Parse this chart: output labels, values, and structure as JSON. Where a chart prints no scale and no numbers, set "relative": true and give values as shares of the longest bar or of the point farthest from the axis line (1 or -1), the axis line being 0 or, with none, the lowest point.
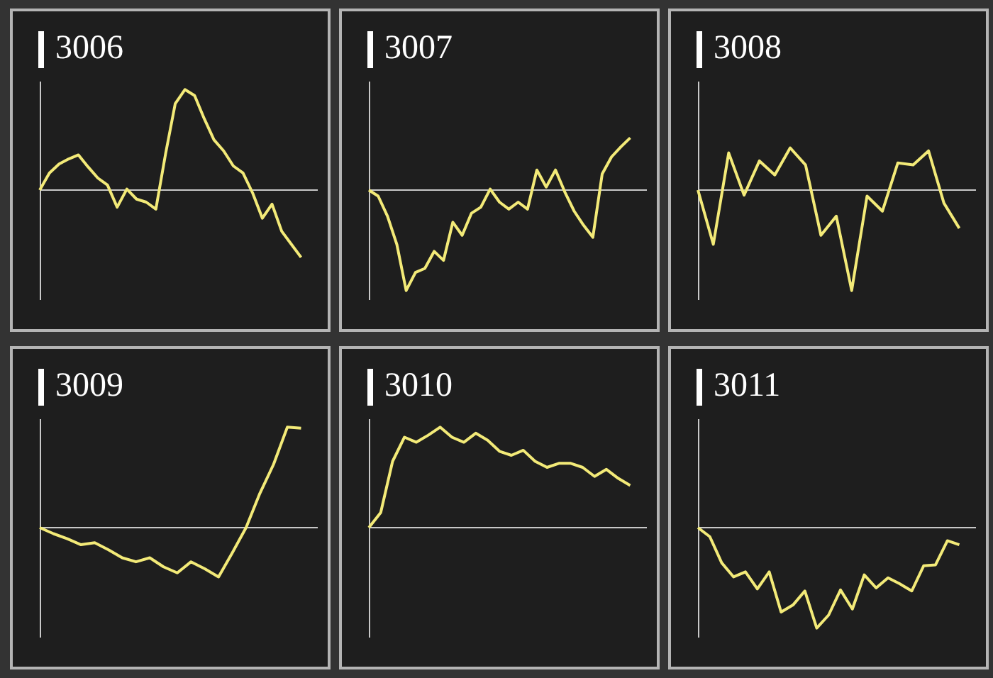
{
  "chart_data": [
    {
      "type": "line",
      "title": "3006",
      "relative": true,
      "categories": [
        null,
        null,
        null,
        null,
        null,
        null,
        null,
        null,
        null,
        null,
        null,
        null,
        null,
        null,
        null,
        null,
        null,
        null,
        null,
        null,
        null,
        null,
        null,
        null,
        null,
        null,
        null,
        null
      ],
      "series": [
        {
          "color": "#f3ea78",
          "values": [
            0,
            0.17,
            0.26,
            0.31,
            0.35,
            0.23,
            0.12,
            0.05,
            -0.17,
            0.01,
            -0.09,
            -0.12,
            -0.19,
            0.36,
            0.86,
            1,
            0.94,
            0.71,
            0.5,
            0.39,
            0.24,
            0.17,
            -0.03,
            -0.28,
            -0.14,
            -0.41,
            -0.54,
            -0.67
          ]
        }
      ]
    },
    {
      "type": "line",
      "title": "3007",
      "relative": true,
      "categories": [
        null,
        null,
        null,
        null,
        null,
        null,
        null,
        null,
        null,
        null,
        null,
        null,
        null,
        null,
        null,
        null,
        null,
        null,
        null,
        null,
        null,
        null,
        null,
        null,
        null,
        null,
        null,
        null,
        null
      ],
      "series": [
        {
          "color": "#f3ea78",
          "values": [
            0,
            -0.06,
            -0.26,
            -0.54,
            -1,
            -0.82,
            -0.78,
            -0.61,
            -0.7,
            -0.32,
            -0.45,
            -0.23,
            -0.17,
            0.01,
            -0.12,
            -0.19,
            -0.12,
            -0.19,
            0.2,
            0.03,
            0.2,
            -0.02,
            -0.21,
            -0.35,
            -0.47,
            0.16,
            0.33,
            0.43,
            0.52
          ]
        }
      ]
    },
    {
      "type": "line",
      "title": "3008",
      "relative": true,
      "categories": [
        null,
        null,
        null,
        null,
        null,
        null,
        null,
        null,
        null,
        null,
        null,
        null,
        null,
        null,
        null,
        null,
        null,
        null
      ],
      "series": [
        {
          "color": "#f3ea78",
          "values": [
            0,
            -0.54,
            0.37,
            -0.05,
            0.29,
            0.15,
            0.42,
            0.25,
            -0.45,
            -0.26,
            -1,
            -0.06,
            -0.21,
            0.27,
            0.25,
            0.39,
            -0.13,
            -0.38
          ]
        }
      ]
    },
    {
      "type": "line",
      "title": "3009",
      "relative": true,
      "categories": [
        null,
        null,
        null,
        null,
        null,
        null,
        null,
        null,
        null,
        null,
        null,
        null,
        null,
        null,
        null,
        null,
        null,
        null,
        null,
        null
      ],
      "series": [
        {
          "color": "#f3ea78",
          "values": [
            0,
            -0.06,
            -0.11,
            -0.17,
            -0.15,
            -0.22,
            -0.3,
            -0.34,
            -0.3,
            -0.39,
            -0.45,
            -0.34,
            -0.41,
            -0.49,
            -0.25,
            0,
            0.34,
            0.63,
            1,
            0.99
          ]
        }
      ]
    },
    {
      "type": "line",
      "title": "3010",
      "relative": true,
      "categories": [
        null,
        null,
        null,
        null,
        null,
        null,
        null,
        null,
        null,
        null,
        null,
        null,
        null,
        null,
        null,
        null,
        null,
        null,
        null,
        null,
        null,
        null,
        null
      ],
      "series": [
        {
          "color": "#f3ea78",
          "values": [
            0,
            0.15,
            0.66,
            0.9,
            0.85,
            0.92,
            1,
            0.9,
            0.85,
            0.94,
            0.87,
            0.76,
            0.72,
            0.77,
            0.66,
            0.6,
            0.64,
            0.64,
            0.6,
            0.51,
            0.58,
            0.49,
            0.42
          ]
        }
      ]
    },
    {
      "type": "line",
      "title": "3011",
      "relative": true,
      "categories": [
        null,
        null,
        null,
        null,
        null,
        null,
        null,
        null,
        null,
        null,
        null,
        null,
        null,
        null,
        null,
        null,
        null,
        null,
        null,
        null,
        null,
        null,
        null
      ],
      "series": [
        {
          "color": "#f3ea78",
          "values": [
            0,
            -0.09,
            -0.35,
            -0.49,
            -0.44,
            -0.61,
            -0.44,
            -0.84,
            -0.77,
            -0.63,
            -1,
            -0.87,
            -0.62,
            -0.81,
            -0.47,
            -0.6,
            -0.5,
            -0.56,
            -0.63,
            -0.38,
            -0.37,
            -0.13,
            -0.17
          ]
        }
      ]
    }
  ]
}
